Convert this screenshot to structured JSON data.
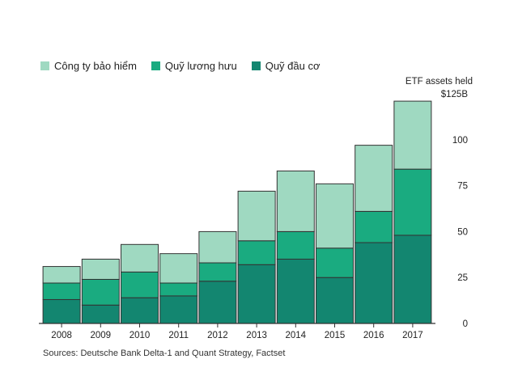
{
  "chart_data": {
    "type": "bar",
    "stacked": true,
    "categories": [
      "2008",
      "2009",
      "2010",
      "2011",
      "2012",
      "2013",
      "2014",
      "2015",
      "2016",
      "2017"
    ],
    "series": [
      {
        "name": "Quỹ đầu cơ",
        "color": "#138670",
        "values": [
          13,
          10,
          14,
          15,
          23,
          32,
          35,
          25,
          44,
          48
        ]
      },
      {
        "name": "Quỹ lương hưu",
        "color": "#1aab80",
        "values": [
          9,
          14,
          14,
          7,
          10,
          13,
          15,
          16,
          17,
          36
        ]
      },
      {
        "name": "Công ty bảo hiểm",
        "color": "#9fd9c1",
        "values": [
          9,
          11,
          15,
          16,
          17,
          27,
          33,
          35,
          36,
          37
        ]
      }
    ],
    "legend_order": [
      "Công ty bảo hiểm",
      "Quỹ lương hưu",
      "Quỹ đầu cơ"
    ],
    "ylabel": "ETF assets held",
    "ylim": [
      0,
      125
    ],
    "yticks": [
      0,
      25,
      50,
      75,
      100,
      125
    ],
    "ytick_labels": [
      "0",
      "25",
      "50",
      "75",
      "100",
      "$125B"
    ],
    "source": "Sources: Deutsche Bank Delta-1 and Quant Strategy, Factset"
  }
}
